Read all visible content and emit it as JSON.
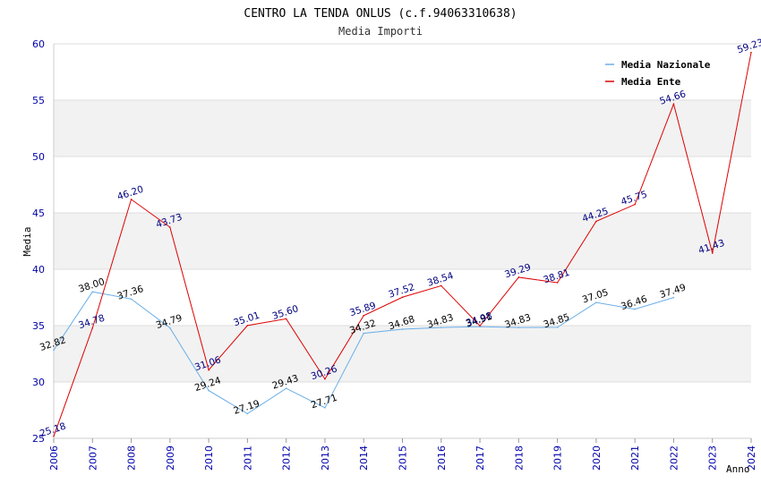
{
  "chart_data": {
    "type": "line",
    "title": "CENTRO LA TENDA ONLUS (c.f.94063310638)",
    "subtitle": "Media Importi",
    "xlabel": "Anno",
    "ylabel": "Media",
    "ylim": [
      25,
      60
    ],
    "yticks": [
      "25",
      "30",
      "35",
      "40",
      "45",
      "50",
      "55",
      "60"
    ],
    "x": [
      "2006",
      "2007",
      "2008",
      "2009",
      "2010",
      "2011",
      "2012",
      "2013",
      "2014",
      "2015",
      "2016",
      "2017",
      "2018",
      "2019",
      "2020",
      "2021",
      "2022",
      "2023",
      "2024"
    ],
    "grid": true,
    "legend_position": "top-right",
    "series": [
      {
        "name": "Media Nazionale",
        "color": "#6aaee8",
        "label_color": "#000000",
        "values": [
          32.82,
          38.0,
          37.36,
          34.79,
          29.24,
          27.19,
          29.43,
          27.71,
          34.32,
          34.68,
          34.83,
          34.91,
          34.83,
          34.85,
          37.05,
          36.46,
          37.49,
          null,
          null
        ],
        "labels": [
          "32.82",
          "38.00",
          "37.36",
          "34.79",
          "29.24",
          "27.19",
          "29.43",
          "27.71",
          "34.32",
          "34.68",
          "34.83",
          "34.91",
          "34.83",
          "34.85",
          "37.05",
          "36.46",
          "37.49",
          "",
          ""
        ]
      },
      {
        "name": "Media Ente",
        "color": "#dd0000",
        "label_color": "#00007f",
        "values": [
          25.18,
          34.78,
          46.2,
          43.73,
          31.06,
          35.01,
          35.6,
          30.26,
          35.89,
          37.52,
          38.54,
          34.98,
          39.29,
          38.81,
          44.25,
          45.75,
          54.66,
          41.43,
          59.23
        ],
        "labels": [
          "25.18",
          "34.78",
          "46.20",
          "43.73",
          "31.06",
          "35.01",
          "35.60",
          "30.26",
          "35.89",
          "37.52",
          "38.54",
          "34.98",
          "39.29",
          "38.81",
          "44.25",
          "45.75",
          "54.66",
          "41.43",
          "59.23"
        ]
      }
    ]
  }
}
